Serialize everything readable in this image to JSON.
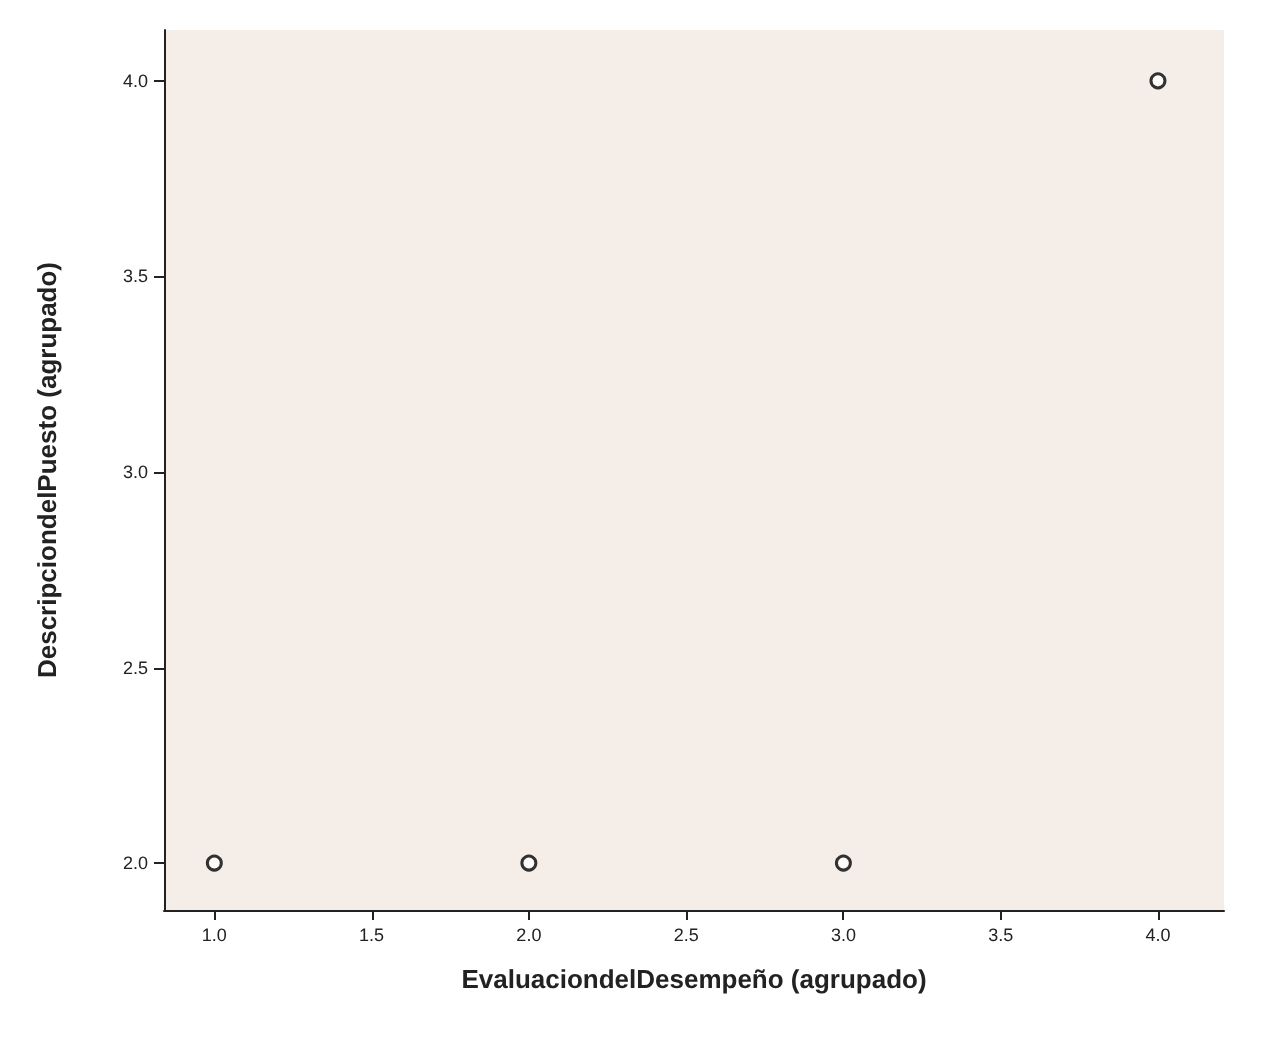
{
  "chart_data": {
    "type": "scatter",
    "xlabel": "EvaluaciondelDesempeño (agrupado)",
    "ylabel": "DescripciondelPuesto (agrupado)",
    "x": [
      1,
      2,
      3,
      4
    ],
    "values": [
      2,
      2,
      2,
      4
    ],
    "color": "#000000",
    "xlim": [
      0.84,
      4.21
    ],
    "ylim": [
      1.88,
      4.13
    ],
    "xticks": [
      {
        "value": 1,
        "label": "1.0"
      },
      {
        "value": 1.5,
        "label": "1.5"
      },
      {
        "value": 2,
        "label": "2.0"
      },
      {
        "value": 2.5,
        "label": "2.5"
      },
      {
        "value": 3,
        "label": "3.0"
      },
      {
        "value": 3.5,
        "label": "3.5"
      },
      {
        "value": 4,
        "label": "4.0"
      }
    ],
    "yticks": [
      {
        "value": 2,
        "label": "2.0"
      },
      {
        "value": 2.5,
        "label": "2.5"
      },
      {
        "value": 3,
        "label": "3.0"
      },
      {
        "value": 3.5,
        "label": "3.5"
      },
      {
        "value": 4,
        "label": "4.0"
      }
    ],
    "grid": false,
    "marker": "circle"
  }
}
